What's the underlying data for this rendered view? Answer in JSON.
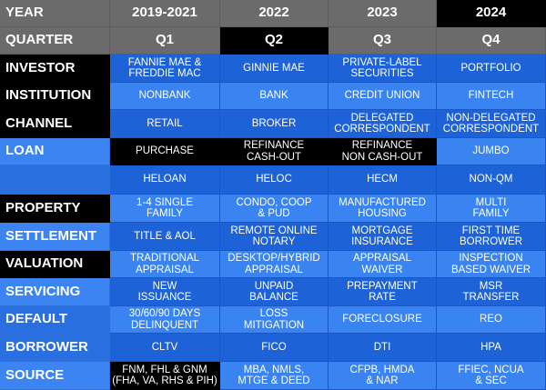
{
  "header": {
    "year_label": "YEAR",
    "quarter_label": "QUARTER",
    "years": [
      "2019-2021",
      "2022",
      "2023",
      "2024"
    ],
    "quarters": [
      "Q1",
      "Q2",
      "Q3",
      "Q4"
    ]
  },
  "rows": [
    {
      "label": "INVESTOR",
      "cells": [
        "FANNIE MAE &\nFREDDIE MAC",
        "GINNIE MAE",
        "PRIVATE-LABEL\nSECURITIES",
        "PORTFOLIO"
      ]
    },
    {
      "label": "INSTITUTION",
      "cells": [
        "NONBANK",
        "BANK",
        "CREDIT UNION",
        "FINTECH"
      ]
    },
    {
      "label": "CHANNEL",
      "cells": [
        "RETAIL",
        "BROKER",
        "DELEGATED\nCORRESPONDENT",
        "NON-DELEGATED\nCORRESPONDENT"
      ]
    },
    {
      "label": "LOAN",
      "cells": [
        "PURCHASE",
        "REFINANCE\nCASH-OUT",
        "REFINANCE\nNON CASH-OUT",
        "JUMBO"
      ]
    },
    {
      "label": "",
      "cells": [
        "HELOAN",
        "HELOC",
        "HECM",
        "NON-QM"
      ]
    },
    {
      "label": "PROPERTY",
      "cells": [
        "1-4 SINGLE\nFAMILY",
        "CONDO, COOP\n& PUD",
        "MANUFACTURED\nHOUSING",
        "MULTI\nFAMILY"
      ]
    },
    {
      "label": "SETTLEMENT",
      "cells": [
        "TITLE & AOL",
        "REMOTE ONLINE\nNOTARY",
        "MORTGAGE\nINSURANCE",
        "FIRST TIME\nBORROWER"
      ]
    },
    {
      "label": "VALUATION",
      "cells": [
        "TRADITIONAL\nAPPRAISAL",
        "DESKTOP/HYBRID\nAPPRAISAL",
        "APPRAISAL\nWAIVER",
        "INSPECTION\nBASED WAIVER"
      ]
    },
    {
      "label": "SERVICING",
      "cells": [
        "NEW\nISSUANCE",
        "UNPAID\nBALANCE",
        "PREPAYMENT\nRATE",
        "MSR\nTRANSFER"
      ]
    },
    {
      "label": "DEFAULT",
      "cells": [
        "30/60/90 DAYS\nDELINQUENT",
        "LOSS\nMITIGATION",
        "FORECLOSURE",
        "REO"
      ]
    },
    {
      "label": "BORROWER",
      "cells": [
        "CLTV",
        "FICO",
        "DTI",
        "HPA"
      ]
    },
    {
      "label": "SOURCE",
      "cells": [
        "FNM, FHL & GNM\n(FHA, VA, RHS & PIH)",
        "MBA, NMLS,\nMTGE & DEED",
        "CFPB, HMDA\n& NAR",
        "FFIEC, NCUA\n& SEC"
      ]
    }
  ],
  "colors": {
    "header_gray": "#6b6b6b",
    "black": "#000000",
    "cell_dark_blue": "#1e62d8",
    "cell_light_blue": "#3a84f1"
  }
}
